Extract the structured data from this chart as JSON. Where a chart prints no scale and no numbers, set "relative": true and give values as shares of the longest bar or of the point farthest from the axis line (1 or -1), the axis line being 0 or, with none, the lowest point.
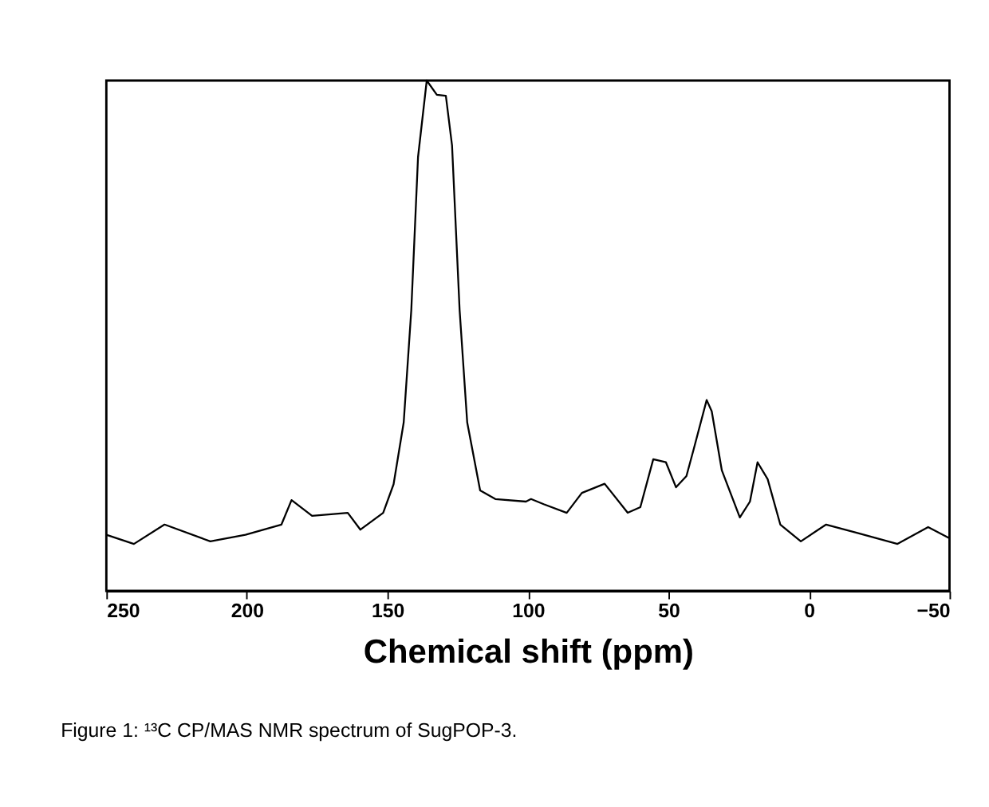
{
  "chart_data": {
    "type": "line",
    "xlabel": "Chemical shift (ppm)",
    "relative": true,
    "grid": false,
    "tick_labels": "x",
    "xlim": [
      250,
      -50
    ],
    "xticks": [
      250,
      200,
      150,
      100,
      50,
      0,
      -50
    ],
    "annotations": [
      "Figure 1: ¹³C CP/MAS NMR spectrum of SugPOP-3."
    ],
    "series": [
      {
        "color": "#000000",
        "x": [
          250,
          240.2,
          229.3,
          213,
          200.5,
          187.7,
          184.1,
          176.8,
          164.1,
          159.6,
          151.5,
          147.8,
          144.2,
          141.5,
          139.1,
          136.0,
          132.4,
          129.2,
          127.0,
          124.3,
          121.6,
          117.0,
          111.6,
          100.7,
          98.9,
          94.4,
          86.2,
          80.8,
          72.7,
          64.5,
          60.0,
          55.4,
          50.9,
          47.3,
          43.6,
          40.9,
          36.4,
          34.6,
          31.0,
          24.6,
          21.0,
          18.3,
          14.7,
          10.2,
          2.9,
          -6.1,
          -17.0,
          -31.5,
          -42.4,
          -50
        ],
        "values": [
          0.11,
          0.092,
          0.13,
          0.097,
          0.11,
          0.13,
          0.178,
          0.147,
          0.153,
          0.12,
          0.153,
          0.209,
          0.33,
          0.55,
          0.85,
          1.0,
          0.972,
          0.97,
          0.873,
          0.55,
          0.33,
          0.197,
          0.18,
          0.175,
          0.18,
          0.17,
          0.153,
          0.192,
          0.21,
          0.153,
          0.164,
          0.258,
          0.252,
          0.203,
          0.225,
          0.28,
          0.374,
          0.352,
          0.236,
          0.144,
          0.175,
          0.252,
          0.219,
          0.13,
          0.097,
          0.13,
          0.114,
          0.092,
          0.125,
          0.103
        ]
      }
    ]
  }
}
